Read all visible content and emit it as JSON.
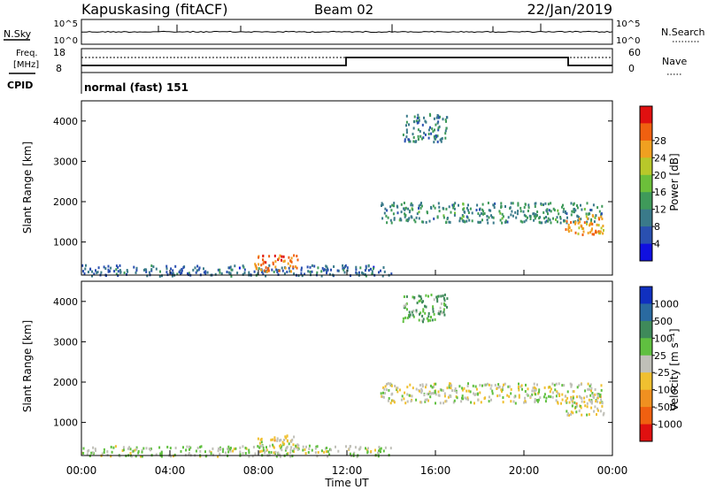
{
  "header": {
    "radar": "Kapuskasing (fitACF)",
    "beam": "Beam 02",
    "date": "22/Jan/2019"
  },
  "strip": {
    "nsky_label": "N.Sky",
    "nsky_ticks": [
      "10^5",
      "10^0"
    ],
    "nsearch_label": "N.Search",
    "nsearch_ticks": [
      "10^5",
      "10^0"
    ],
    "freq_label_line1": "Freq.",
    "freq_label_line2": "[MHz]",
    "freq_ticks": [
      "18",
      "8"
    ],
    "nave_label": "Nave",
    "nave_ticks": [
      "60",
      "0"
    ],
    "cpid_label": "CPID",
    "cpid_text": "normal (fast) 151"
  },
  "chart_data": [
    {
      "type": "heatmap",
      "title": "",
      "ylabel": "Slant Range [km]",
      "yticks": [
        1000,
        2000,
        3000,
        4000
      ],
      "ylim": [
        180,
        4500
      ],
      "xlim": [
        0,
        24
      ],
      "colorbar": {
        "label": "Power [dB]",
        "ticks": [
          "4",
          "8",
          "12",
          "16",
          "20",
          "24",
          "28"
        ],
        "colors": [
          "#1010e0",
          "#2a50b0",
          "#3a7a8a",
          "#3f9a5a",
          "#6cbf3a",
          "#b8c82a",
          "#f0a020",
          "#f06010",
          "#e01010"
        ],
        "range": [
          0,
          30
        ]
      },
      "regions": [
        {
          "t0": 0.0,
          "t1": 14.0,
          "r0": 180,
          "r1": 450,
          "value": 7
        },
        {
          "t0": 7.8,
          "t1": 9.8,
          "r0": 280,
          "r1": 700,
          "value": 24
        },
        {
          "t0": 13.5,
          "t1": 23.5,
          "r0": 1500,
          "r1": 2000,
          "value": 10
        },
        {
          "t0": 14.5,
          "t1": 16.5,
          "r0": 3500,
          "r1": 4200,
          "value": 9
        },
        {
          "t0": 21.8,
          "t1": 23.6,
          "r0": 1200,
          "r1": 1700,
          "value": 22
        }
      ]
    },
    {
      "type": "heatmap",
      "title": "",
      "ylabel": "Slant Range [km]",
      "xlabel": "Time UT",
      "xticks": [
        "00:00",
        "04:00",
        "08:00",
        "12:00",
        "16:00",
        "20:00",
        "00:00"
      ],
      "yticks": [
        1000,
        2000,
        3000,
        4000
      ],
      "ylim": [
        180,
        4500
      ],
      "xlim": [
        0,
        24
      ],
      "colorbar": {
        "label": "Velocity [m s⁻¹]",
        "ticks": [
          "1000",
          "500",
          "100",
          "25",
          "-25",
          "-100",
          "-500",
          "-1000"
        ],
        "colors": [
          "#1030c0",
          "#2a6aa0",
          "#3f8a5a",
          "#60c040",
          "#c0c0b8",
          "#f0c030",
          "#f09020",
          "#f06010",
          "#e01010"
        ],
        "range": [
          -1000,
          1000
        ]
      },
      "regions": [
        {
          "t0": 0.0,
          "t1": 14.0,
          "r0": 180,
          "r1": 450,
          "value": 80
        },
        {
          "t0": 7.8,
          "t1": 9.8,
          "r0": 280,
          "r1": 700,
          "value": -100
        },
        {
          "t0": 13.5,
          "t1": 23.5,
          "r0": 1500,
          "r1": 2000,
          "value": 0
        },
        {
          "t0": 14.5,
          "t1": 16.5,
          "r0": 3500,
          "r1": 4200,
          "value": 300
        },
        {
          "t0": 21.8,
          "t1": 23.6,
          "r0": 1200,
          "r1": 1700,
          "value": -100
        }
      ]
    }
  ]
}
